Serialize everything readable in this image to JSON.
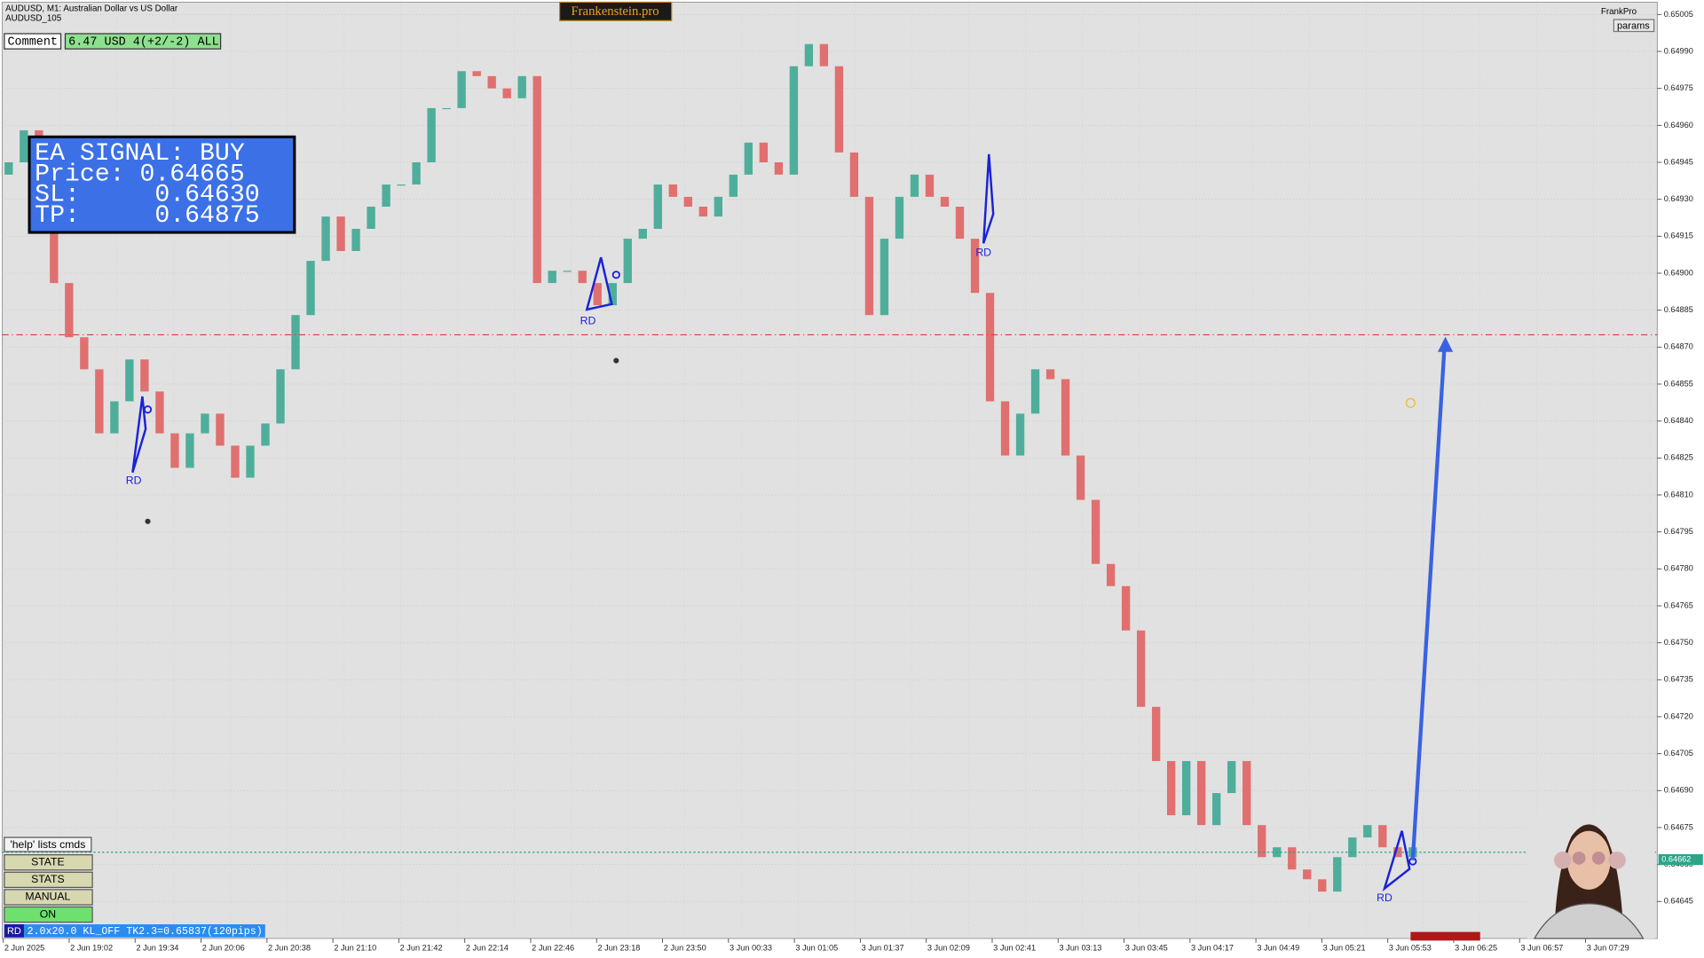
{
  "chart_data": {
    "type": "candlestick",
    "symbol_line": "AUDUSD, M1:  Australian Dollar vs US Dollar",
    "symbol_sub": "AUDUSD_105",
    "up_color": "#4fae9b",
    "down_color": "#e0706f",
    "ylim": [
      0.6463,
      0.6501
    ],
    "yticks": [
      0.65005,
      {
        "value": 0.6499,
        "label": "0.64990"
      },
      0.64975,
      {
        "value": 0.6496,
        "label": "0.64960"
      },
      0.64945,
      {
        "value": 0.6493,
        "label": "0.64930"
      },
      0.64915,
      {
        "value": 0.649,
        "label": "0.64900"
      },
      0.64885,
      {
        "value": 0.6487,
        "label": "0.64870"
      },
      0.64855,
      {
        "value": 0.6484,
        "label": "0.64840"
      },
      0.64825,
      {
        "value": 0.6481,
        "label": "0.64810"
      },
      0.64795,
      {
        "value": 0.6478,
        "label": "0.64780"
      },
      0.64765,
      {
        "value": 0.6475,
        "label": "0.64750"
      },
      0.64735,
      {
        "value": 0.6472,
        "label": "0.64720"
      },
      0.64705,
      {
        "value": 0.6469,
        "label": "0.64690"
      },
      0.64675,
      {
        "value": 0.6466,
        "label": "0.64660"
      },
      0.64645
    ],
    "time_labels": [
      "2 Jun 2025",
      "2 Jun 19:02",
      "2 Jun 19:34",
      "2 Jun 20:06",
      "2 Jun 20:38",
      "2 Jun 21:10",
      "2 Jun 21:42",
      "2 Jun 22:14",
      "2 Jun 22:46",
      "2 Jun 23:18",
      "2 Jun 23:50",
      "3 Jun 00:33",
      "3 Jun 01:05",
      "3 Jun 01:37",
      "3 Jun 02:09",
      "3 Jun 02:41",
      "3 Jun 03:13",
      "3 Jun 03:45",
      "3 Jun 04:17",
      "3 Jun 04:49",
      "3 Jun 05:21",
      "3 Jun 05:53",
      "3 Jun 06:25",
      "3 Jun 06:57",
      "3 Jun 07:29"
    ],
    "open": [
      0.6494,
      0.64945,
      0.64958,
      0.64923,
      0.64896,
      0.64874,
      0.64861,
      0.64835,
      0.64848,
      0.64865,
      0.64852,
      0.64835,
      0.64821,
      0.64835,
      0.64843,
      0.6483,
      0.64817,
      0.6483,
      0.64839,
      0.64861,
      0.64883,
      0.64905,
      0.64923,
      0.64909,
      0.64918,
      0.64927,
      0.64936,
      0.64936,
      0.64945,
      0.64967,
      0.64967,
      0.64982,
      0.6498,
      0.64975,
      0.64971,
      0.6498,
      0.64896,
      0.64901,
      0.64901,
      0.64896,
      0.64887,
      0.64896,
      0.64914,
      0.64918,
      0.64936,
      0.64931,
      0.64927,
      0.64923,
      0.64931,
      0.6494,
      0.64953,
      0.64945,
      0.6494,
      0.64984,
      0.64993,
      0.64984,
      0.64949,
      0.64931,
      0.64883,
      0.64914,
      0.64931,
      0.6494,
      0.64931,
      0.64927,
      0.64914,
      0.64892,
      0.64848,
      0.64826,
      0.64843,
      0.64861,
      0.64857,
      0.64826,
      0.64808,
      0.64782,
      0.64773,
      0.64755,
      0.64724,
      0.64702,
      0.6468,
      0.64702,
      0.64676,
      0.64689,
      0.64702,
      0.64676,
      0.64663,
      0.64667,
      0.64658,
      0.64654,
      0.64649,
      0.64663,
      0.64671,
      0.64676,
      0.64667,
      0.64663
    ],
    "close": [
      0.64945,
      0.64958,
      0.64923,
      0.64896,
      0.64874,
      0.64861,
      0.64835,
      0.64848,
      0.64865,
      0.64852,
      0.64835,
      0.64821,
      0.64835,
      0.64843,
      0.6483,
      0.64817,
      0.6483,
      0.64839,
      0.64861,
      0.64883,
      0.64905,
      0.64923,
      0.64909,
      0.64918,
      0.64927,
      0.64936,
      0.64936,
      0.64945,
      0.64967,
      0.64967,
      0.64982,
      0.6498,
      0.64975,
      0.64971,
      0.6498,
      0.64896,
      0.64901,
      0.64901,
      0.64896,
      0.64887,
      0.64896,
      0.64914,
      0.64918,
      0.64936,
      0.64931,
      0.64927,
      0.64923,
      0.64931,
      0.6494,
      0.64953,
      0.64945,
      0.6494,
      0.64984,
      0.64993,
      0.64984,
      0.64949,
      0.64931,
      0.64883,
      0.64914,
      0.64931,
      0.6494,
      0.64931,
      0.64927,
      0.64914,
      0.64892,
      0.64848,
      0.64826,
      0.64843,
      0.64861,
      0.64857,
      0.64826,
      0.64808,
      0.64782,
      0.64773,
      0.64755,
      0.64724,
      0.64702,
      0.6468,
      0.64702,
      0.64676,
      0.64689,
      0.64702,
      0.64676,
      0.64663,
      0.64667,
      0.64658,
      0.64654,
      0.64649,
      0.64663,
      0.64671,
      0.64676,
      0.64667,
      0.64663,
      0.64667
    ],
    "hlines": [
      {
        "value": 0.64875,
        "color": "#e03a3a"
      },
      {
        "value": 0.64665,
        "color": "#2aa58a"
      }
    ],
    "last_price": 0.64662,
    "annotations": [
      "RD",
      "RD",
      "RD",
      "RD"
    ],
    "grid": true
  },
  "ui": {
    "brand": "Frankenstein.pro",
    "account": "FrankPro",
    "params": "params",
    "comment_label": "Comment",
    "comment_value": "6.47 USD 4(+2/-2) ALL",
    "signal": [
      "EA SIGNAL: BUY",
      "Price: 0.64665",
      "SL:     0.64630",
      "TP:     0.64875"
    ],
    "buttons": [
      "'help' lists cmds",
      "STATE",
      "STATS",
      "MANUAL",
      "ON"
    ],
    "status_tag": "RD",
    "status_text": "2.0x20.0 KL_OFF TK2.3=0.65837(120pips)"
  }
}
